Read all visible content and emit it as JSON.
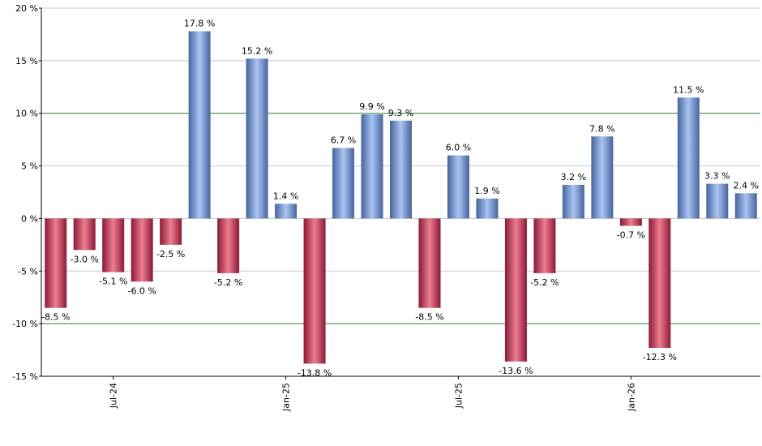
{
  "chart_data": {
    "type": "bar",
    "x_ticks": [
      {
        "label": "Jul-24",
        "index": 2.5
      },
      {
        "label": "Jan-25",
        "index": 8.5
      },
      {
        "label": "Jul-25",
        "index": 14.5
      },
      {
        "label": "Jan-26",
        "index": 20.5
      }
    ],
    "values": [
      -8.5,
      -3.0,
      -5.1,
      -6.0,
      -2.5,
      17.8,
      -5.2,
      15.2,
      1.4,
      -13.8,
      6.7,
      9.9,
      9.3,
      -8.5,
      6.0,
      1.9,
      -13.6,
      -5.2,
      3.2,
      7.8,
      -0.7,
      -12.3,
      11.5,
      3.3,
      2.4
    ],
    "value_labels": [
      "-8.5 %",
      "-3.0 %",
      "-5.1 %",
      "-6.0 %",
      "-2.5 %",
      "17.8 %",
      "-5.2 %",
      "15.2 %",
      "1.4 %",
      "-13.8 %",
      "6.7 %",
      "9.9 %",
      "9.3 %",
      "-8.5 %",
      "6.0 %",
      "1.9 %",
      "-13.6 %",
      "-5.2 %",
      "3.2 %",
      "7.8 %",
      "-0.7 %",
      "-12.3 %",
      "11.5 %",
      "3.3 %",
      "2.4 %"
    ],
    "y_ticks": [
      {
        "value": 20,
        "label": "20 %"
      },
      {
        "value": 15,
        "label": "15 %"
      },
      {
        "value": 10,
        "label": "10 %"
      },
      {
        "value": 5,
        "label": "5 %"
      },
      {
        "value": 0,
        "label": "0 %"
      },
      {
        "value": -5,
        "label": "-5 %"
      },
      {
        "value": -10,
        "label": "-10 %"
      },
      {
        "value": -15,
        "label": "-15 %"
      }
    ],
    "ylim": [
      -15,
      20
    ],
    "highlight_lines": [
      10,
      -10
    ],
    "grid": true,
    "legend": "none",
    "colors": {
      "positive_dark": "#46649e",
      "positive_light": "#a9c4f2",
      "negative_dark": "#8a1a36",
      "negative_light": "#ee7d91",
      "grid": "#c8c8c8",
      "highlight_line": "#2e7d32",
      "axis": "#000000"
    }
  }
}
